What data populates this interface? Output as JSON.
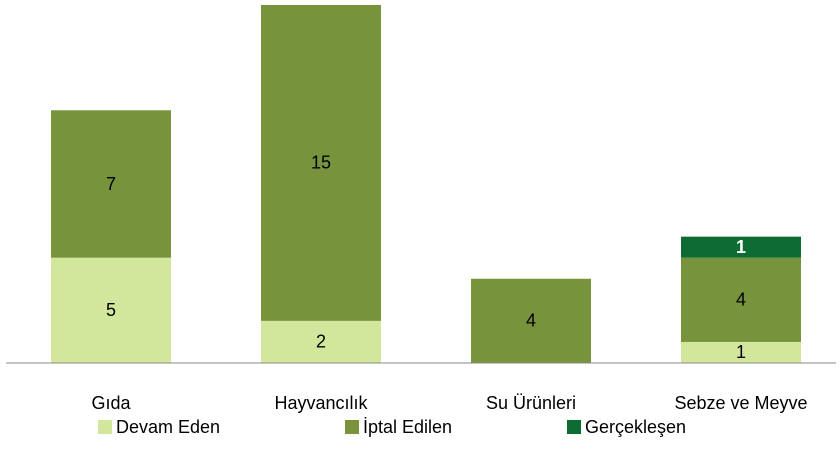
{
  "chart_data": {
    "type": "bar",
    "stacked": true,
    "categories": [
      "Gıda",
      "Hayvancılık",
      "Su Ürünleri",
      "Sebze ve Meyve"
    ],
    "series": [
      {
        "name": "Devam Eden",
        "color": "#d3e79c",
        "values": [
          5,
          2,
          null,
          1
        ]
      },
      {
        "name": "İptal Edilen",
        "color": "#77933c",
        "values": [
          7,
          15,
          4,
          4
        ]
      },
      {
        "name": "Gerçekleşen",
        "color": "#0e6b33",
        "values": [
          null,
          null,
          null,
          1
        ]
      }
    ],
    "ylim": [
      0,
      17
    ]
  }
}
